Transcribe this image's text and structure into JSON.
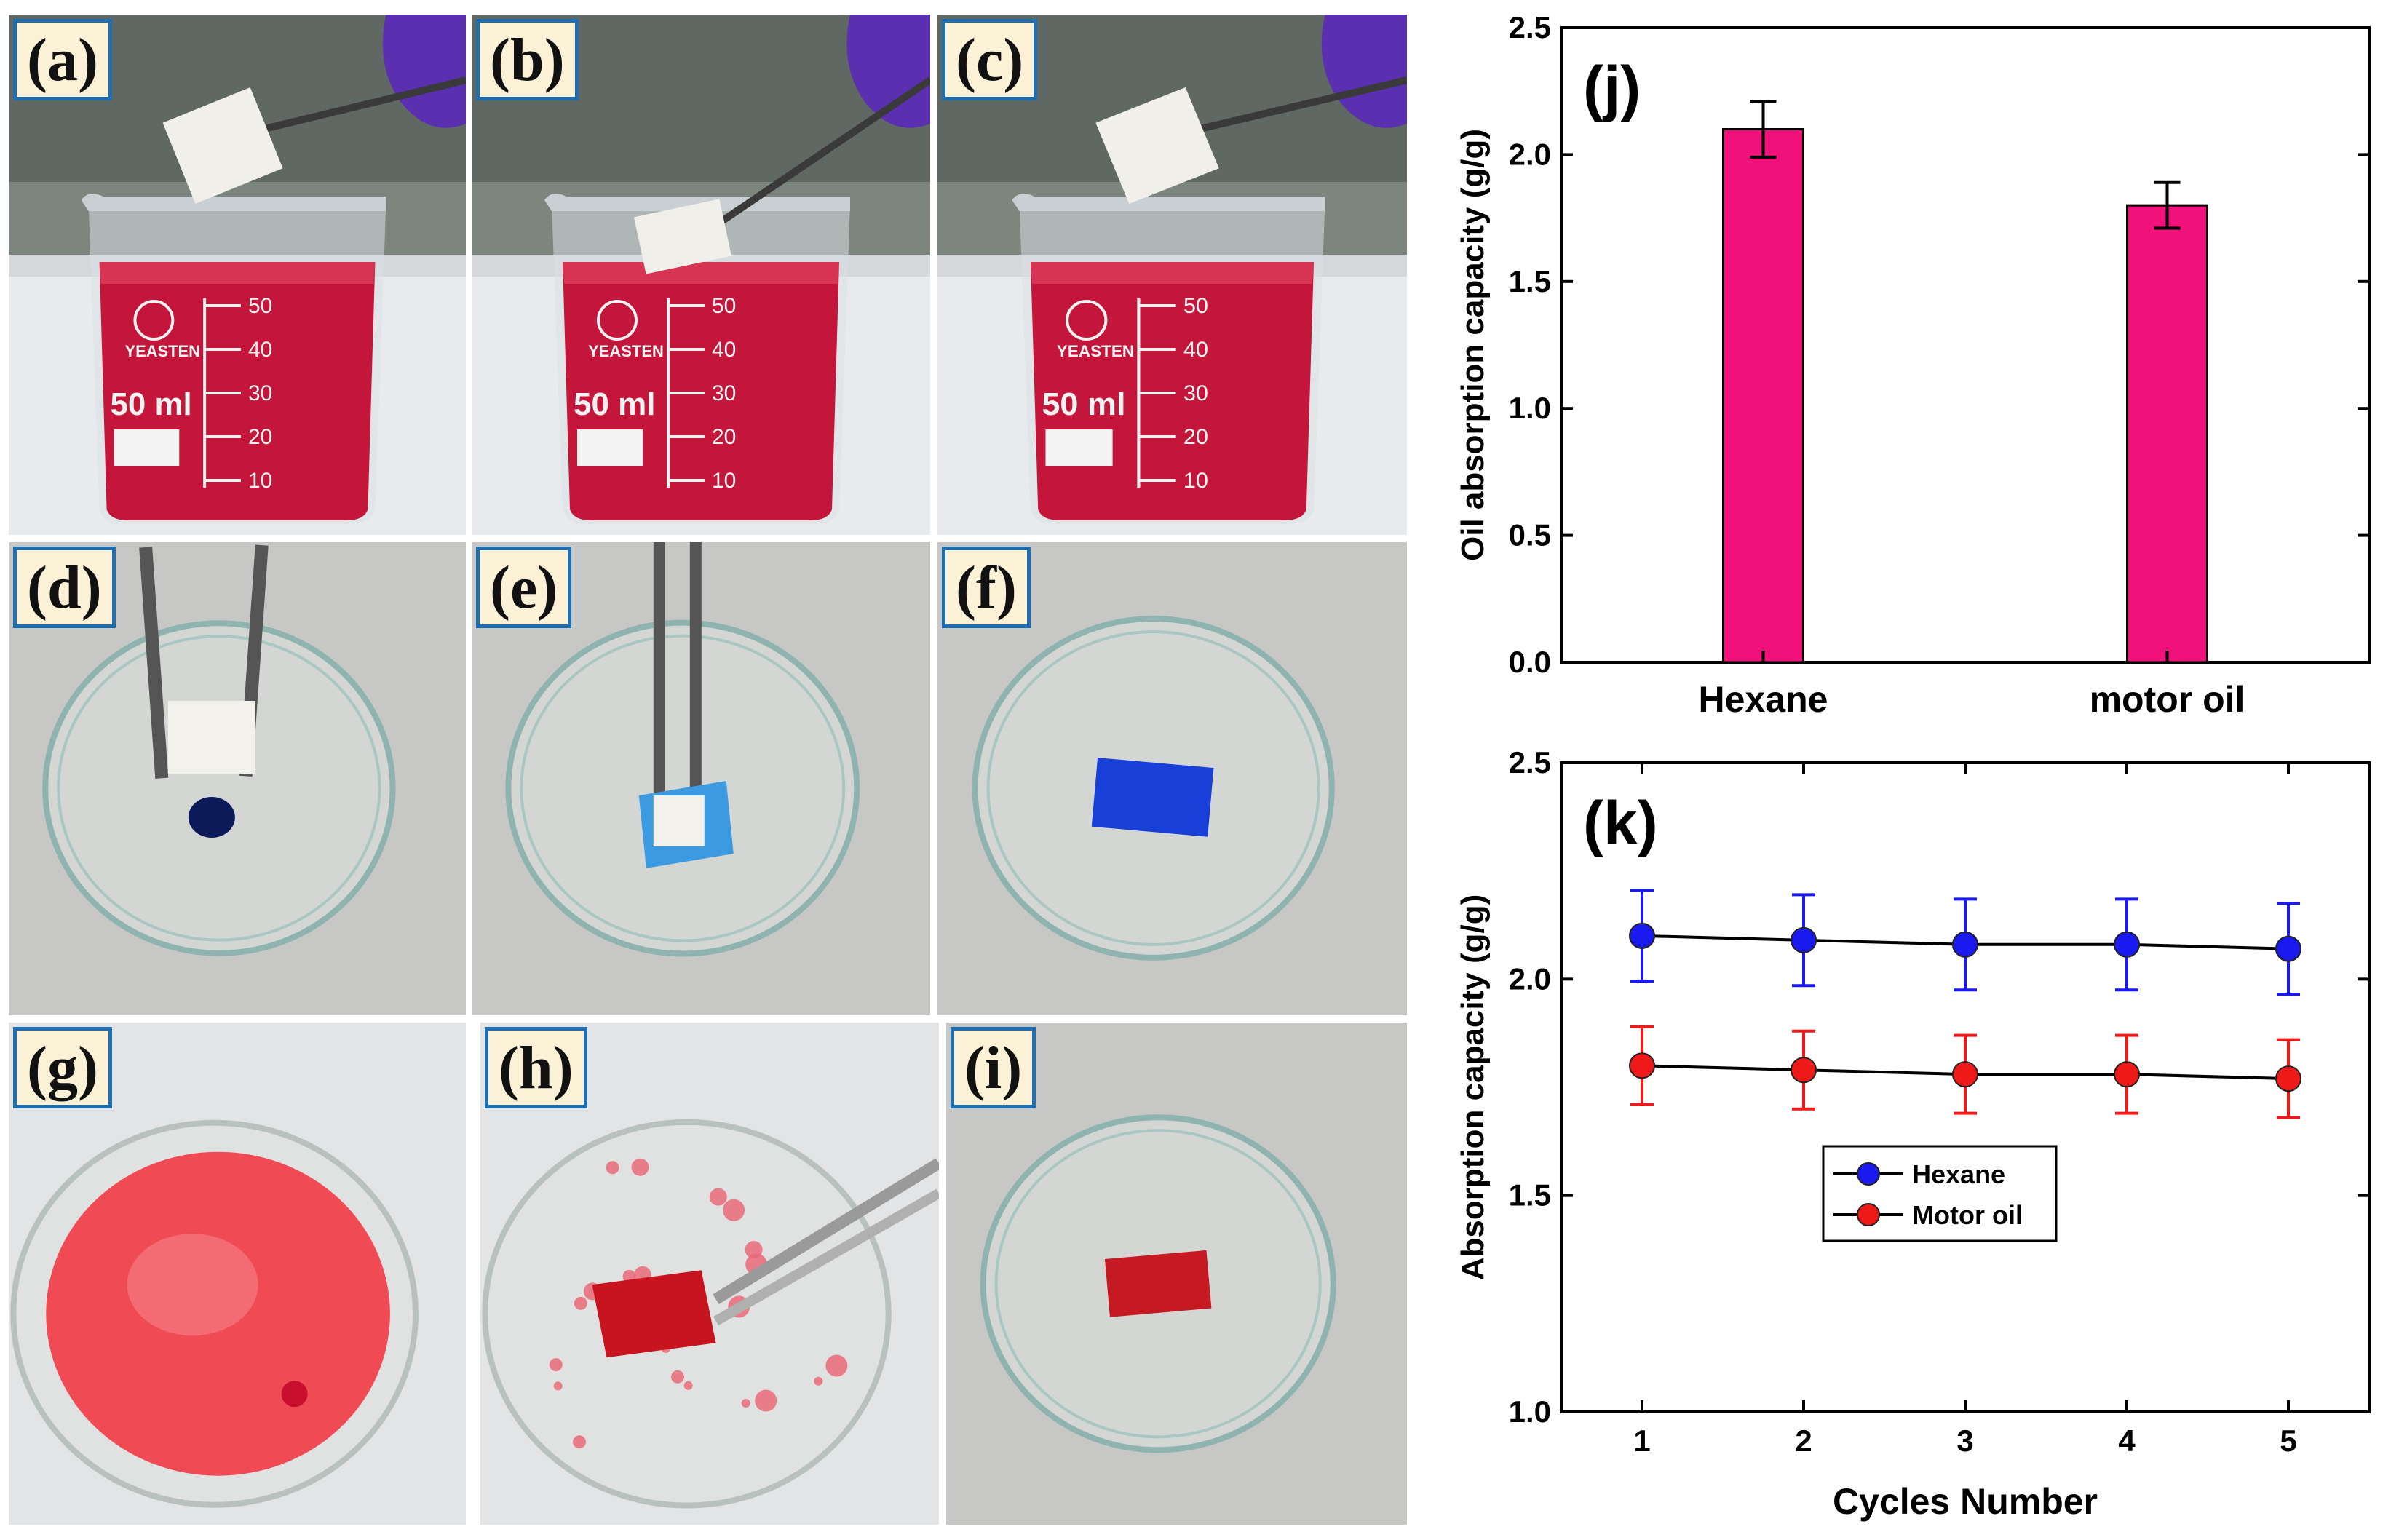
{
  "panels": [
    {
      "label": "(a)",
      "kind": "beaker",
      "sponge": "above"
    },
    {
      "label": "(b)",
      "kind": "beaker",
      "sponge": "in"
    },
    {
      "label": "(c)",
      "kind": "beaker",
      "sponge": "above2"
    },
    {
      "label": "(d)",
      "kind": "dish",
      "dye": "blue-drop"
    },
    {
      "label": "(e)",
      "kind": "dish",
      "dye": "blue-sponge"
    },
    {
      "label": "(f)",
      "kind": "dish",
      "dye": "blue-piece"
    },
    {
      "label": "(g)",
      "kind": "bowl",
      "dye": "red-fill"
    },
    {
      "label": "(h)",
      "kind": "bowl",
      "dye": "red-sponge"
    },
    {
      "label": "(i)",
      "kind": "dish",
      "dye": "red-piece"
    }
  ],
  "beaker_text": {
    "brand": "YEASTEN",
    "volume": "50 ml",
    "marks": [
      "50",
      "40",
      "30",
      "20",
      "10"
    ]
  },
  "colors": {
    "bar": "#f0117a",
    "hexane": "#1a1aee",
    "motor_oil": "#ee1a1a",
    "red_liquid": "#c4163a",
    "blue_dye": "#1840d8",
    "label_border": "#1f6fb0",
    "label_fill": "#fbf1d6"
  },
  "chart_data": [
    {
      "panel_label": "(j)",
      "type": "bar",
      "categories": [
        "Hexane",
        "motor oil"
      ],
      "values": [
        2.1,
        1.8
      ],
      "errors": [
        0.11,
        0.09
      ],
      "xlabel": "",
      "ylabel": "Oil absorption capacity  (g/g)",
      "ylim": [
        0.0,
        2.5
      ],
      "yticks": [
        "0.0",
        "0.5",
        "1.0",
        "1.5",
        "2.0",
        "2.5"
      ]
    },
    {
      "panel_label": "(k)",
      "type": "line",
      "x": [
        1,
        2,
        3,
        4,
        5
      ],
      "xticks": [
        "1",
        "2",
        "3",
        "4",
        "5"
      ],
      "series": [
        {
          "name": "Hexane",
          "values": [
            2.1,
            2.09,
            2.08,
            2.08,
            2.07
          ],
          "errors": [
            0.105,
            0.105,
            0.105,
            0.105,
            0.105
          ]
        },
        {
          "name": "Motor oil",
          "values": [
            1.8,
            1.79,
            1.78,
            1.78,
            1.77
          ],
          "errors": [
            0.09,
            0.09,
            0.09,
            0.09,
            0.09
          ]
        }
      ],
      "xlabel": "Cycles Number",
      "ylabel": "Absorption capacity (g/g)",
      "xlim": [
        0.5,
        5.5
      ],
      "ylim": [
        1.0,
        2.5
      ],
      "yticks": [
        "1.0",
        "1.5",
        "2.0",
        "2.5"
      ],
      "legend": "center-left"
    }
  ]
}
